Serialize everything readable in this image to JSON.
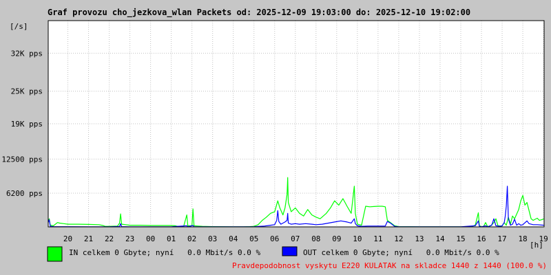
{
  "title": "Graf provozu cho_jezkova_wlan Packets od: 2025-12-09 19:03:00 do: 2025-12-10 19:02:00",
  "legend": {
    "in": {
      "color": "#00ff00",
      "text": "IN celkem 0 Gbyte; nyní   0.0 Mbit/s 0.0 %"
    },
    "out": {
      "color": "#0000ff",
      "text": "OUT celkem 0 Gbyte; nyní   0.0 Mbit/s 0.0 %"
    }
  },
  "footer_note": "Pravdepodobnost vyskytu E220 KULATAK na skladce 1440 z 1440 (100.0 %)",
  "colors": {
    "background": "#c6c6c6",
    "plot": "#ffffff",
    "grid": "#c0c0c0",
    "note": "#ff0000"
  },
  "chart_data": {
    "type": "line",
    "ylabel": "[/s]",
    "xlabel": "[h]",
    "y_ticks": [
      {
        "value": 6200,
        "label": "6200 pps"
      },
      {
        "value": 12500,
        "label": "12500 pps"
      },
      {
        "value": 19000,
        "label": "19K pps"
      },
      {
        "value": 25000,
        "label": "25K pps"
      },
      {
        "value": 32000,
        "label": "32K pps"
      }
    ],
    "ylim": [
      0,
      38000
    ],
    "x_ticks": [
      "20",
      "21",
      "22",
      "23",
      "00",
      "01",
      "02",
      "03",
      "04",
      "05",
      "06",
      "07",
      "08",
      "09",
      "10",
      "11",
      "12",
      "13",
      "14",
      "15",
      "16",
      "17",
      "18",
      "19"
    ],
    "x_range_hours": [
      19.05,
      43.03
    ],
    "grid": true,
    "series": [
      {
        "name": "IN",
        "color": "#00ff00",
        "points": [
          [
            19.05,
            1000
          ],
          [
            19.1,
            1500
          ],
          [
            19.15,
            300
          ],
          [
            19.3,
            200
          ],
          [
            19.5,
            800
          ],
          [
            19.6,
            700
          ],
          [
            19.8,
            600
          ],
          [
            20.0,
            500
          ],
          [
            20.5,
            500
          ],
          [
            21.0,
            450
          ],
          [
            21.5,
            400
          ],
          [
            21.7,
            250
          ],
          [
            21.8,
            100
          ],
          [
            22.0,
            100
          ],
          [
            22.4,
            150
          ],
          [
            22.5,
            700
          ],
          [
            22.55,
            2400
          ],
          [
            22.6,
            500
          ],
          [
            22.8,
            400
          ],
          [
            23.0,
            300
          ],
          [
            23.5,
            300
          ],
          [
            24.0,
            250
          ],
          [
            24.5,
            250
          ],
          [
            25.0,
            250
          ],
          [
            25.2,
            200
          ],
          [
            25.3,
            100
          ],
          [
            25.6,
            100
          ],
          [
            25.75,
            2200
          ],
          [
            25.8,
            200
          ],
          [
            26.0,
            200
          ],
          [
            26.05,
            3300
          ],
          [
            26.1,
            200
          ],
          [
            26.3,
            150
          ],
          [
            26.5,
            100
          ],
          [
            27.0,
            50
          ],
          [
            28.0,
            30
          ],
          [
            28.5,
            30
          ],
          [
            28.8,
            50
          ],
          [
            29.0,
            100
          ],
          [
            29.2,
            400
          ],
          [
            29.4,
            1200
          ],
          [
            29.6,
            1800
          ],
          [
            29.8,
            2500
          ],
          [
            30.0,
            2800
          ],
          [
            30.15,
            4800
          ],
          [
            30.25,
            3500
          ],
          [
            30.4,
            2200
          ],
          [
            30.5,
            3500
          ],
          [
            30.6,
            6000
          ],
          [
            30.63,
            9100
          ],
          [
            30.66,
            4500
          ],
          [
            30.8,
            2800
          ],
          [
            31.0,
            3500
          ],
          [
            31.2,
            2500
          ],
          [
            31.4,
            2000
          ],
          [
            31.6,
            3200
          ],
          [
            31.8,
            2200
          ],
          [
            32.0,
            1800
          ],
          [
            32.2,
            1500
          ],
          [
            32.5,
            2500
          ],
          [
            32.7,
            3500
          ],
          [
            32.9,
            4800
          ],
          [
            33.1,
            4000
          ],
          [
            33.3,
            5200
          ],
          [
            33.5,
            3800
          ],
          [
            33.7,
            2500
          ],
          [
            33.85,
            7500
          ],
          [
            33.9,
            2500
          ],
          [
            34.0,
            500
          ],
          [
            34.2,
            300
          ],
          [
            34.4,
            3800
          ],
          [
            34.6,
            3700
          ],
          [
            34.8,
            3750
          ],
          [
            35.0,
            3800
          ],
          [
            35.2,
            3800
          ],
          [
            35.35,
            3700
          ],
          [
            35.45,
            1200
          ],
          [
            35.6,
            800
          ],
          [
            35.8,
            200
          ],
          [
            36.0,
            50
          ],
          [
            37.0,
            30
          ],
          [
            38.0,
            30
          ],
          [
            39.0,
            30
          ],
          [
            39.5,
            30
          ],
          [
            39.7,
            300
          ],
          [
            39.85,
            2600
          ],
          [
            39.9,
            200
          ],
          [
            40.0,
            50
          ],
          [
            40.1,
            50
          ],
          [
            40.2,
            800
          ],
          [
            40.3,
            50
          ],
          [
            40.45,
            200
          ],
          [
            40.6,
            800
          ],
          [
            40.7,
            1500
          ],
          [
            40.8,
            200
          ],
          [
            41.0,
            150
          ],
          [
            41.1,
            800
          ],
          [
            41.2,
            300
          ],
          [
            41.3,
            1800
          ],
          [
            41.4,
            500
          ],
          [
            41.5,
            2000
          ],
          [
            41.6,
            1500
          ],
          [
            41.8,
            3200
          ],
          [
            41.9,
            4800
          ],
          [
            42.0,
            5800
          ],
          [
            42.1,
            4000
          ],
          [
            42.2,
            4500
          ],
          [
            42.3,
            3000
          ],
          [
            42.4,
            1500
          ],
          [
            42.5,
            1200
          ],
          [
            42.6,
            1400
          ],
          [
            42.7,
            1600
          ],
          [
            42.8,
            1200
          ],
          [
            42.9,
            1300
          ],
          [
            43.03,
            1500
          ]
        ]
      },
      {
        "name": "OUT",
        "color": "#0000ff",
        "points": [
          [
            19.05,
            800
          ],
          [
            19.1,
            1300
          ],
          [
            19.15,
            100
          ],
          [
            19.3,
            50
          ],
          [
            20.0,
            40
          ],
          [
            21.0,
            30
          ],
          [
            22.0,
            30
          ],
          [
            22.5,
            80
          ],
          [
            22.55,
            600
          ],
          [
            22.6,
            50
          ],
          [
            23.0,
            30
          ],
          [
            25.0,
            30
          ],
          [
            25.75,
            200
          ],
          [
            25.8,
            30
          ],
          [
            26.05,
            250
          ],
          [
            26.1,
            30
          ],
          [
            28.0,
            20
          ],
          [
            29.0,
            20
          ],
          [
            29.2,
            80
          ],
          [
            29.5,
            150
          ],
          [
            29.8,
            300
          ],
          [
            30.0,
            400
          ],
          [
            30.1,
            1200
          ],
          [
            30.15,
            3000
          ],
          [
            30.2,
            1000
          ],
          [
            30.3,
            500
          ],
          [
            30.5,
            900
          ],
          [
            30.6,
            1200
          ],
          [
            30.63,
            2500
          ],
          [
            30.66,
            700
          ],
          [
            30.8,
            500
          ],
          [
            31.0,
            600
          ],
          [
            31.2,
            500
          ],
          [
            31.5,
            600
          ],
          [
            31.8,
            500
          ],
          [
            32.0,
            400
          ],
          [
            32.3,
            500
          ],
          [
            32.6,
            700
          ],
          [
            32.9,
            900
          ],
          [
            33.2,
            1100
          ],
          [
            33.5,
            900
          ],
          [
            33.7,
            700
          ],
          [
            33.85,
            1500
          ],
          [
            33.9,
            600
          ],
          [
            34.0,
            200
          ],
          [
            34.2,
            100
          ],
          [
            34.5,
            150
          ],
          [
            35.0,
            150
          ],
          [
            35.35,
            150
          ],
          [
            35.45,
            1000
          ],
          [
            35.6,
            700
          ],
          [
            35.8,
            100
          ],
          [
            36.0,
            30
          ],
          [
            37.0,
            20
          ],
          [
            38.0,
            20
          ],
          [
            39.0,
            20
          ],
          [
            39.7,
            200
          ],
          [
            39.85,
            1100
          ],
          [
            39.9,
            100
          ],
          [
            40.0,
            30
          ],
          [
            40.2,
            200
          ],
          [
            40.3,
            30
          ],
          [
            40.5,
            300
          ],
          [
            40.6,
            1500
          ],
          [
            40.7,
            200
          ],
          [
            40.9,
            100
          ],
          [
            41.0,
            200
          ],
          [
            41.1,
            800
          ],
          [
            41.15,
            2000
          ],
          [
            41.2,
            3800
          ],
          [
            41.25,
            7500
          ],
          [
            41.3,
            1500
          ],
          [
            41.4,
            300
          ],
          [
            41.5,
            500
          ],
          [
            41.6,
            1400
          ],
          [
            41.7,
            300
          ],
          [
            41.8,
            600
          ],
          [
            41.9,
            300
          ],
          [
            42.0,
            400
          ],
          [
            42.2,
            1100
          ],
          [
            42.3,
            600
          ],
          [
            42.5,
            400
          ],
          [
            42.7,
            400
          ],
          [
            43.03,
            300
          ]
        ]
      }
    ]
  }
}
